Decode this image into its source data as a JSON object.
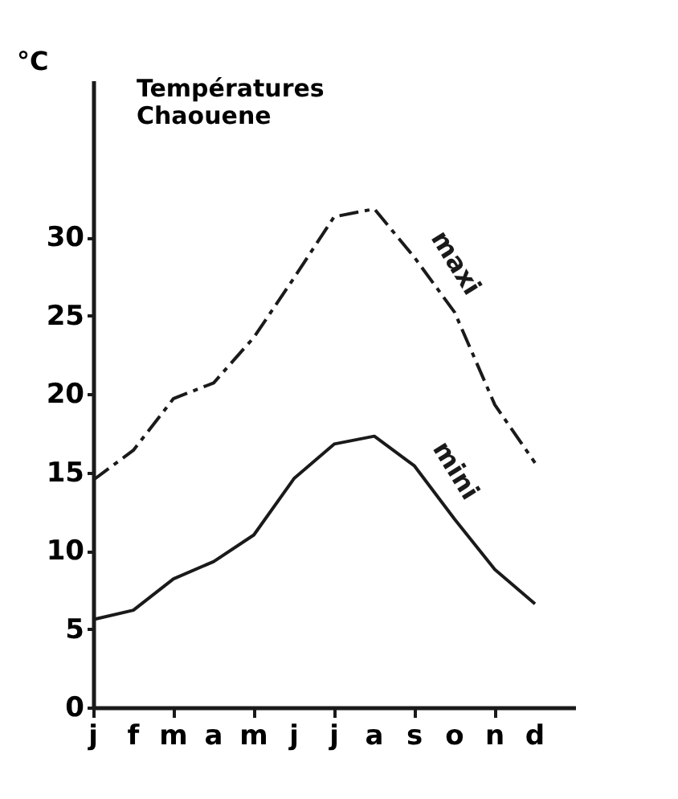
{
  "chart_data": {
    "type": "line",
    "title": [
      "Températures",
      "Chaouene"
    ],
    "ylabel": "°C",
    "categories": [
      "j",
      "f",
      "m",
      "a",
      "m",
      "j",
      "j",
      "a",
      "s",
      "o",
      "n",
      "d"
    ],
    "series": [
      {
        "name": "maxi",
        "color": "#1a1a1a",
        "line_style": "dashed",
        "values": [
          14.5,
          16.4,
          19.7,
          20.7,
          23.6,
          27.4,
          31.3,
          31.8,
          28.7,
          25.2,
          19.3,
          15.6
        ]
      },
      {
        "name": "mini",
        "color": "#1a1a1a",
        "line_style": "solid",
        "values": [
          5.6,
          6.2,
          8.2,
          9.3,
          11.0,
          14.6,
          16.8,
          17.3,
          15.4,
          12.0,
          8.8,
          6.6
        ]
      }
    ],
    "ylim": [
      0,
      40
    ],
    "yticks": [
      0,
      5,
      10,
      15,
      20,
      25,
      30
    ],
    "grid": false,
    "marker": "none"
  }
}
